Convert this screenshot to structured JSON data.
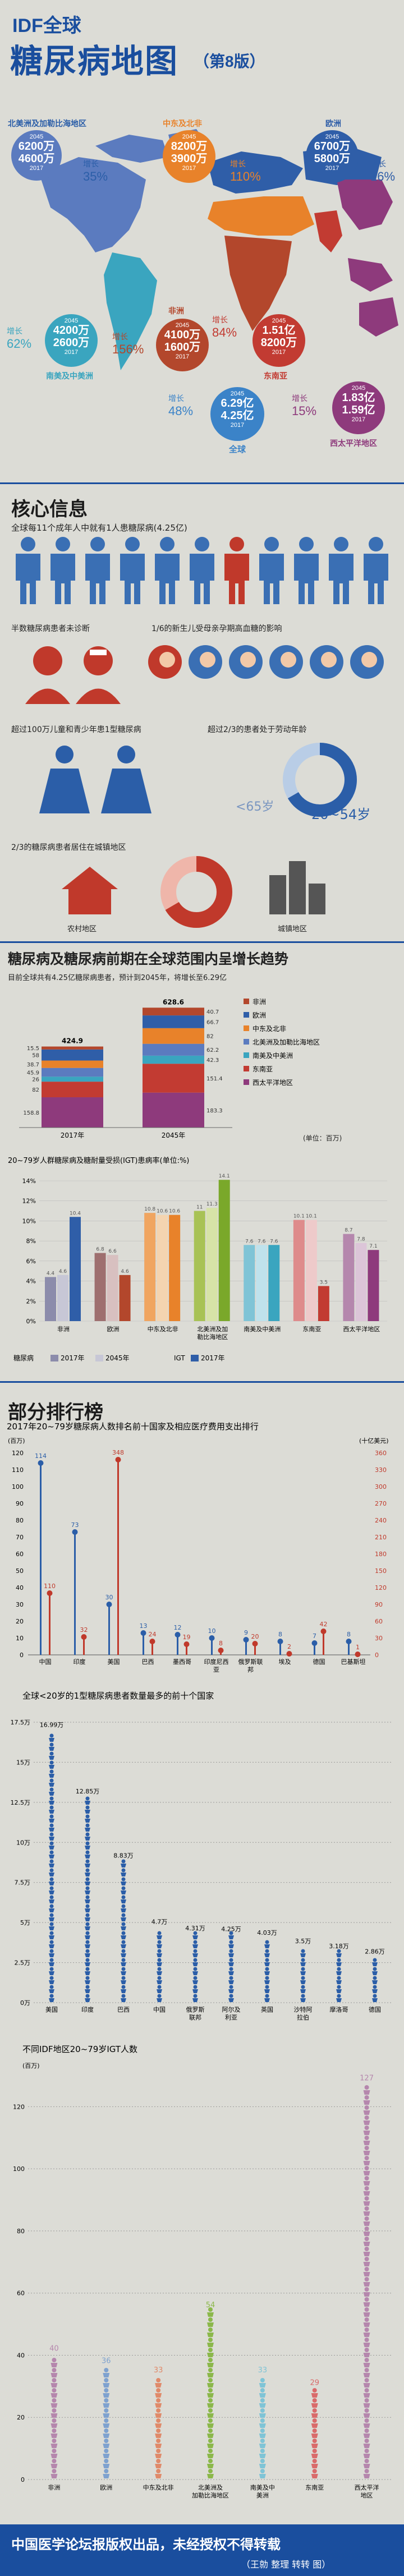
{
  "header": {
    "idf": "IDF全球",
    "title": "糖尿病地图",
    "edition": "（第8版）"
  },
  "map": {
    "regions": [
      {
        "key": "nac",
        "label": "北美洲及加勒比海地区",
        "y2045": "6200万",
        "y2017": "4600万",
        "color": "#5b7bbf",
        "growth": "35%"
      },
      {
        "key": "mena",
        "label": "中东及北非",
        "y2045": "8200万",
        "y2017": "3900万",
        "color": "#e8822a",
        "growth": "110%"
      },
      {
        "key": "eur",
        "label": "欧洲",
        "y2045": "6700万",
        "y2017": "5800万",
        "color": "#2f5ea8",
        "growth": "16%"
      },
      {
        "key": "sacа",
        "label": "南美及中美洲",
        "y2045": "4200万",
        "y2017": "2600万",
        "color": "#3aa5bf",
        "growth": "62%"
      },
      {
        "key": "afr",
        "label": "非洲",
        "y2045": "4100万",
        "y2017": "1600万",
        "color": "#b3472c",
        "growth": "156%"
      },
      {
        "key": "sea",
        "label": "东南亚",
        "y2045": "1.51亿",
        "y2017": "8200万",
        "color": "#c23b32",
        "growth": "84%"
      },
      {
        "key": "wp",
        "label": "西太平洋地区",
        "y2045": "1.83亿",
        "y2017": "1.59亿",
        "color": "#8e3a7c",
        "growth": "15%"
      },
      {
        "key": "world",
        "label": "全球",
        "y2045": "6.29亿",
        "y2017": "4.25亿",
        "color": "#3b83c8",
        "growth": "48%"
      }
    ],
    "year_a": "2045",
    "year_b": "2017",
    "growth_word": "增长"
  },
  "core": {
    "title": "核心信息",
    "f1": "全球每11个成年人中就有1人患糖尿病(4.25亿)",
    "f2": "半数糖尿病患者未诊断",
    "f3": "1/6的新生儿受母亲孕期高血糖的影响",
    "f4": "超过100万儿童和青少年患1型糖尿病",
    "f5": "超过2/3的患者处于劳动年龄",
    "f5_label_a": "<65岁",
    "f5_label_b": "20~54岁",
    "f6": "2/3的糖尿病患者居住在城镇地区",
    "rural": "农村地区",
    "urban": "城镇地区"
  },
  "trend": {
    "title": "糖尿病及糖尿病前期在全球范围内呈增长趋势",
    "sub": "目前全球共有4.25亿糖尿病患者，预计到2045年，将增长至6.29亿",
    "unit": "(单位：百万)"
  },
  "chart_data": [
    {
      "type": "bar",
      "title": "糖尿病患者数量（百万）",
      "categories": [
        "2017年",
        "2045年"
      ],
      "totals": [
        424.9,
        628.6
      ],
      "series": [
        {
          "name": "西太平洋地区",
          "values": [
            158.8,
            183.3
          ],
          "color": "#8e3a7c"
        },
        {
          "name": "东南亚",
          "values": [
            82.0,
            151.4
          ],
          "color": "#c23b32"
        },
        {
          "name": "南美及中美洲",
          "values": [
            26.0,
            42.3
          ],
          "color": "#3aa5bf"
        },
        {
          "name": "北美洲及加勒比海地区",
          "values": [
            45.9,
            62.2
          ],
          "color": "#5b7bbf"
        },
        {
          "name": "中东及北非",
          "values": [
            38.7,
            82.0
          ],
          "color": "#e8822a"
        },
        {
          "name": "欧洲",
          "values": [
            58.0,
            66.7
          ],
          "color": "#2f5ea8"
        },
        {
          "name": "非洲",
          "values": [
            15.5,
            40.7
          ],
          "color": "#b3472c"
        }
      ],
      "legend": [
        "非洲",
        "欧洲",
        "中东及北非",
        "北美洲及加勒比海地区",
        "南美及中美洲",
        "东南亚",
        "西太平洋地区"
      ]
    },
    {
      "type": "bar",
      "title": "20~79岁人群糖尿病及糖耐量受损(IGT)患病率(单位:%)",
      "categories": [
        "非洲",
        "欧洲",
        "中东及北非",
        "北美洲及加勒比海地区",
        "南美及中美洲",
        "东南亚",
        "西太平洋地区"
      ],
      "series": [
        {
          "name": "糖尿病 2017年",
          "values": [
            4.4,
            6.8,
            10.8,
            11.0,
            7.6,
            10.1,
            8.7
          ]
        },
        {
          "name": "2045年",
          "values": [
            4.6,
            6.6,
            10.6,
            11.3,
            7.6,
            10.1,
            7.8
          ]
        },
        {
          "name": "IGT 2017年",
          "values": [
            10.4,
            4.6,
            10.6,
            14.1,
            7.6,
            3.5,
            7.1
          ]
        }
      ],
      "ylim": [
        0,
        14
      ],
      "yticks": [
        "0%",
        "2%",
        "4%",
        "6%",
        "8%",
        "10%",
        "12%",
        "14%"
      ],
      "legend_words": [
        "糖尿病",
        "2017年",
        "2045年",
        "IGT",
        "2017年"
      ]
    },
    {
      "type": "bar",
      "title": "2017年20~79岁糖尿病人数排名前十国家及相应医疗费用支出排行",
      "categories": [
        "中国",
        "印度",
        "美国",
        "巴西",
        "墨西哥",
        "印度尼西亚",
        "俄罗斯联邦",
        "埃及",
        "德国",
        "巴基斯坦"
      ],
      "series": [
        {
          "name": "患者数(百万)",
          "values": [
            114,
            73,
            30,
            13,
            12,
            10,
            9,
            8,
            7,
            8
          ]
        },
        {
          "name": "医疗费用(十亿美元)",
          "values": [
            110,
            32,
            348,
            24,
            19,
            8,
            20,
            2,
            42,
            1
          ]
        }
      ],
      "left_unit": "(百万)",
      "right_unit": "(十亿美元)",
      "yticks_left": [
        0,
        10,
        20,
        30,
        40,
        50,
        60,
        70,
        80,
        90,
        100,
        110,
        120
      ],
      "yticks_right": [
        0,
        30,
        60,
        90,
        120,
        150,
        180,
        210,
        240,
        270,
        300,
        330,
        360
      ]
    },
    {
      "type": "bar",
      "title": "全球<20岁的1型糖尿病患者数量最多的前十个国家",
      "categories": [
        "美国",
        "印度",
        "巴西",
        "中国",
        "俄罗斯联邦",
        "阿尔及利亚",
        "英国",
        "沙特阿拉伯",
        "摩洛哥",
        "德国"
      ],
      "values": [
        16.99,
        12.85,
        8.83,
        4.7,
        4.31,
        4.25,
        4.03,
        3.5,
        3.18,
        2.86
      ],
      "labels": [
        "16.99万",
        "12.85万",
        "8.83万",
        "4.7万",
        "4.31万",
        "4.25万",
        "4.03万",
        "3.5万",
        "3.18万",
        "2.86万"
      ],
      "yticks": [
        "0万",
        "2.5万",
        "5万",
        "7.5万",
        "10万",
        "12.5万",
        "15万",
        "17.5万"
      ]
    },
    {
      "type": "bar",
      "title": "不同IDF地区20~79岁IGT人数",
      "categories": [
        "非洲",
        "欧洲",
        "中东及北非",
        "北美洲及加勒比海地区",
        "南美及中美洲",
        "东南亚",
        "西太平洋地区"
      ],
      "values": [
        40,
        36,
        33,
        54,
        33,
        29,
        127
      ],
      "unit": "(百万)",
      "yticks": [
        0,
        20,
        40,
        60,
        80,
        100,
        120
      ]
    }
  ],
  "ranking_title": "部分排行榜",
  "footer": {
    "line1": "中国医学论坛报版权出品，未经授权不得转载",
    "line2": "（王勍 整理   转转 图）"
  },
  "colors": {
    "blue": "#1a4e9e",
    "red": "#c0392b",
    "people": "#3a6fb4",
    "navy": "#2b5ea8"
  }
}
